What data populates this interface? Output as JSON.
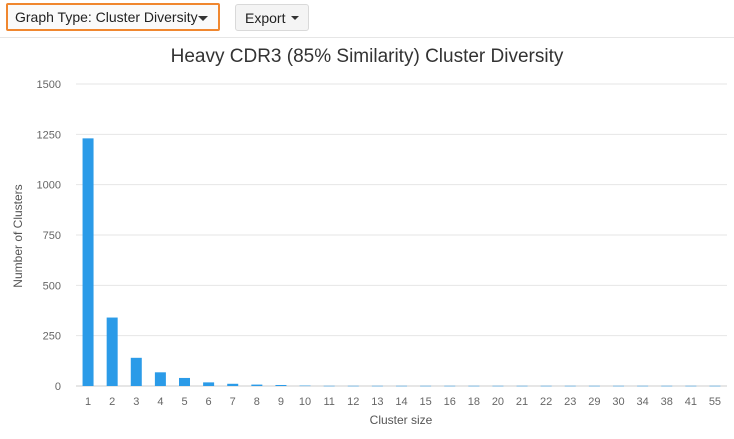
{
  "toolbar": {
    "graph_type_label": "Graph Type: Cluster Diversity",
    "export_label": "Export"
  },
  "colors": {
    "bar": "#2b9be8",
    "accent_border": "#f0872f",
    "grid": "#e6e6e6"
  },
  "chart_data": {
    "type": "bar",
    "title": "Heavy CDR3 (85% Similarity) Cluster Diversity",
    "xlabel": "Cluster size",
    "ylabel": "Number of Clusters",
    "ylim": [
      0,
      1500
    ],
    "yticks": [
      0,
      250,
      500,
      750,
      1000,
      1250,
      1500
    ],
    "grid": true,
    "legend": "none",
    "categories": [
      "1",
      "2",
      "3",
      "4",
      "5",
      "6",
      "7",
      "8",
      "9",
      "10",
      "11",
      "12",
      "13",
      "14",
      "15",
      "16",
      "18",
      "20",
      "21",
      "22",
      "23",
      "29",
      "30",
      "34",
      "38",
      "41",
      "55"
    ],
    "values": [
      1230,
      340,
      140,
      68,
      40,
      18,
      11,
      7,
      5,
      2,
      1,
      1,
      1,
      1,
      1,
      1,
      1,
      1,
      1,
      1,
      1,
      1,
      1,
      1,
      1,
      1,
      1
    ]
  }
}
